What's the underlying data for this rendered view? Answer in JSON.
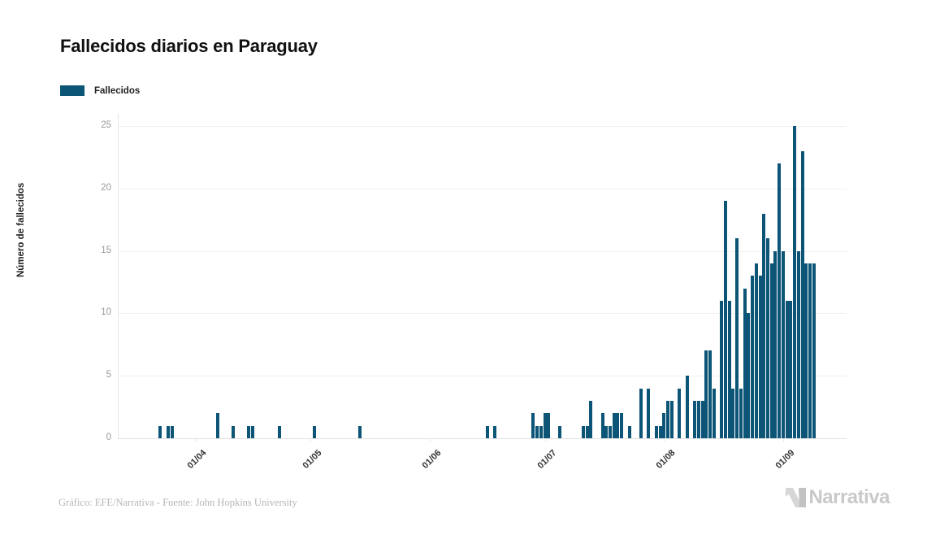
{
  "header": {
    "title": "Fallecidos diarios en Paraguay"
  },
  "legend": {
    "label": "Fallecidos"
  },
  "chart_data": {
    "type": "bar",
    "title": "Fallecidos diarios en Paraguay",
    "series_name": "Fallecidos",
    "xlabel": "",
    "ylabel": "Número de fallecidos",
    "ylim": [
      0,
      25
    ],
    "y_ticks": [
      0,
      5,
      10,
      15,
      20,
      25
    ],
    "grid": "horizontal",
    "legend_position": "top-left",
    "start_date": "21/03/2020",
    "end_date": "09/09/2020",
    "x_ticks": [
      {
        "label": "01/04",
        "day": 11
      },
      {
        "label": "01/05",
        "day": 41
      },
      {
        "label": "01/06",
        "day": 72
      },
      {
        "label": "01/07",
        "day": 102
      },
      {
        "label": "01/08",
        "day": 133
      },
      {
        "label": "01/09",
        "day": 164
      }
    ],
    "values": [
      0,
      0,
      1,
      0,
      1,
      1,
      0,
      0,
      0,
      0,
      0,
      0,
      0,
      0,
      0,
      0,
      0,
      2,
      0,
      0,
      0,
      1,
      0,
      0,
      0,
      1,
      1,
      0,
      0,
      0,
      0,
      0,
      0,
      1,
      0,
      0,
      0,
      0,
      0,
      0,
      0,
      0,
      1,
      0,
      0,
      0,
      0,
      0,
      0,
      0,
      0,
      0,
      0,
      0,
      1,
      0,
      0,
      0,
      0,
      0,
      0,
      0,
      0,
      0,
      0,
      0,
      0,
      0,
      0,
      0,
      0,
      0,
      0,
      0,
      0,
      0,
      0,
      0,
      0,
      0,
      0,
      0,
      0,
      0,
      0,
      0,
      0,
      1,
      0,
      1,
      0,
      0,
      0,
      0,
      0,
      0,
      0,
      0,
      0,
      2,
      1,
      1,
      2,
      2,
      0,
      0,
      1,
      0,
      0,
      0,
      0,
      0,
      1,
      1,
      3,
      0,
      0,
      2,
      1,
      1,
      2,
      2,
      2,
      0,
      1,
      0,
      0,
      4,
      0,
      4,
      0,
      1,
      1,
      2,
      3,
      3,
      0,
      4,
      0,
      5,
      0,
      3,
      3,
      3,
      7,
      7,
      4,
      0,
      11,
      19,
      11,
      4,
      16,
      4,
      12,
      10,
      13,
      14,
      13,
      18,
      16,
      14,
      15,
      22,
      15,
      11,
      11,
      25,
      15,
      23,
      14,
      14,
      14
    ]
  },
  "footer": {
    "credits": "Gráfico: EFE/Narrativa - Fuente: John Hopkins University",
    "logo_text": "Narrativa"
  },
  "colors": {
    "bar": "#0c5577",
    "grid": "#f0f0f0",
    "axis": "#e6e6e6",
    "y_tick_label": "#999999",
    "x_tick_label": "#333333",
    "title": "#111111",
    "credits": "#b5b5b5",
    "logo": "#c9c9c9"
  }
}
